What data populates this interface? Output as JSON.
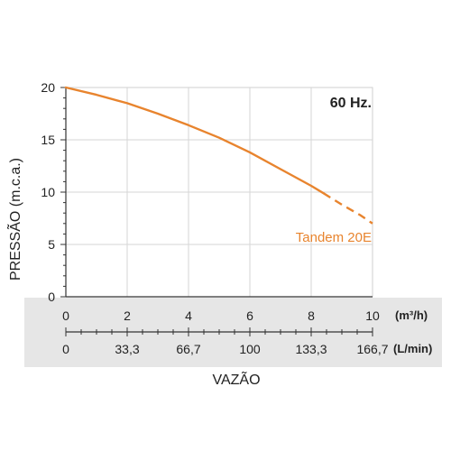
{
  "chart_data": {
    "type": "line",
    "annotation": "60 Hz.",
    "ylabel": "PRESSÃO (m.c.a.)",
    "xlabel": "VAZÃO",
    "ylim": [
      0,
      20
    ],
    "xlim": [
      0,
      10
    ],
    "y_ticks": [
      0,
      5,
      10,
      15,
      20
    ],
    "x_ticks_primary": {
      "unit": "(m³/h)",
      "values": [
        0,
        2,
        4,
        6,
        8,
        10
      ],
      "labels": [
        "0",
        "2",
        "4",
        "6",
        "8",
        "10"
      ]
    },
    "x_ticks_secondary": {
      "unit": "(L/min)",
      "labels": [
        "0",
        "33,3",
        "66,7",
        "100",
        "133,3",
        "166,7"
      ]
    },
    "grid": true,
    "series": [
      {
        "name": "Tandem 20E",
        "color": "#E8842E",
        "solid": {
          "x": [
            0,
            1,
            2,
            3,
            4,
            5,
            6,
            7,
            8,
            8.4
          ],
          "y": [
            20,
            19.3,
            18.5,
            17.5,
            16.4,
            15.2,
            13.8,
            12.2,
            10.6,
            9.9
          ]
        },
        "dashed": {
          "x": [
            8.4,
            9,
            9.6,
            10
          ],
          "y": [
            9.9,
            8.8,
            7.8,
            7
          ]
        }
      }
    ]
  }
}
